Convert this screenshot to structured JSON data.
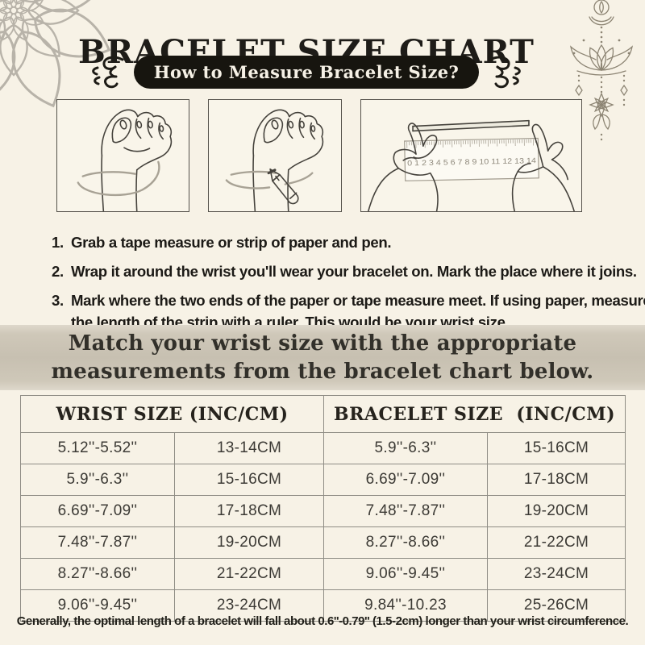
{
  "title": "BRACELET SIZE CHART",
  "pill": "How to Measure Bracelet Size?",
  "steps": [
    {
      "num": "1.",
      "text": "Grab a tape measure or strip of paper and pen."
    },
    {
      "num": "2.",
      "text": "Wrap it around the wrist you'll wear your bracelet on. Mark the place where it joins."
    },
    {
      "num": "3.",
      "text": "Mark where the two ends of the paper or tape measure meet. If using paper, measure the length of the strip with a ruler. This would be your wrist size."
    }
  ],
  "banner": "Match your wrist size with the appropriate measurements from the bracelet chart below.",
  "footer_note": "Generally, the optimal length of a bracelet will fall about 0.6''-0.79'' (1.5-2cm) longer than your wrist circumference.",
  "illustrations": {
    "step1": "wrap tape around wrist",
    "step2": "mark joining point with pen",
    "step3": "measure strip against ruler",
    "ruler_numbers": "0 1 2 3 4 5 6 7 8 9 10 11 12 13 14"
  },
  "chart_data": {
    "type": "table",
    "headers": [
      "WRIST SIZE (INC/CM)",
      "BRACELET SIZE  (INC/CM)"
    ],
    "rows": [
      [
        "5.12''-5.52''",
        "13-14CM",
        "5.9''-6.3''",
        "15-16CM"
      ],
      [
        "5.9''-6.3''",
        "15-16CM",
        "6.69''-7.09''",
        "17-18CM"
      ],
      [
        "6.69''-7.09''",
        "17-18CM",
        "7.48''-7.87''",
        "19-20CM"
      ],
      [
        "7.48''-7.87''",
        "19-20CM",
        "8.27''-8.66''",
        "21-22CM"
      ],
      [
        "8.27''-8.66''",
        "21-22CM",
        "9.06''-9.45''",
        "23-24CM"
      ],
      [
        "9.06''-9.45''",
        "23-24CM",
        "9.84''-10.23",
        "25-26CM"
      ]
    ]
  },
  "colors": {
    "background": "#f7f2e6",
    "pill_bg": "#17150f",
    "pill_text": "#f6f1e6",
    "banner_bg": "#c7c0b1",
    "ink": "#221f1a",
    "table_border": "#8f8d85",
    "decoration_gray": "#b8b3a9"
  }
}
